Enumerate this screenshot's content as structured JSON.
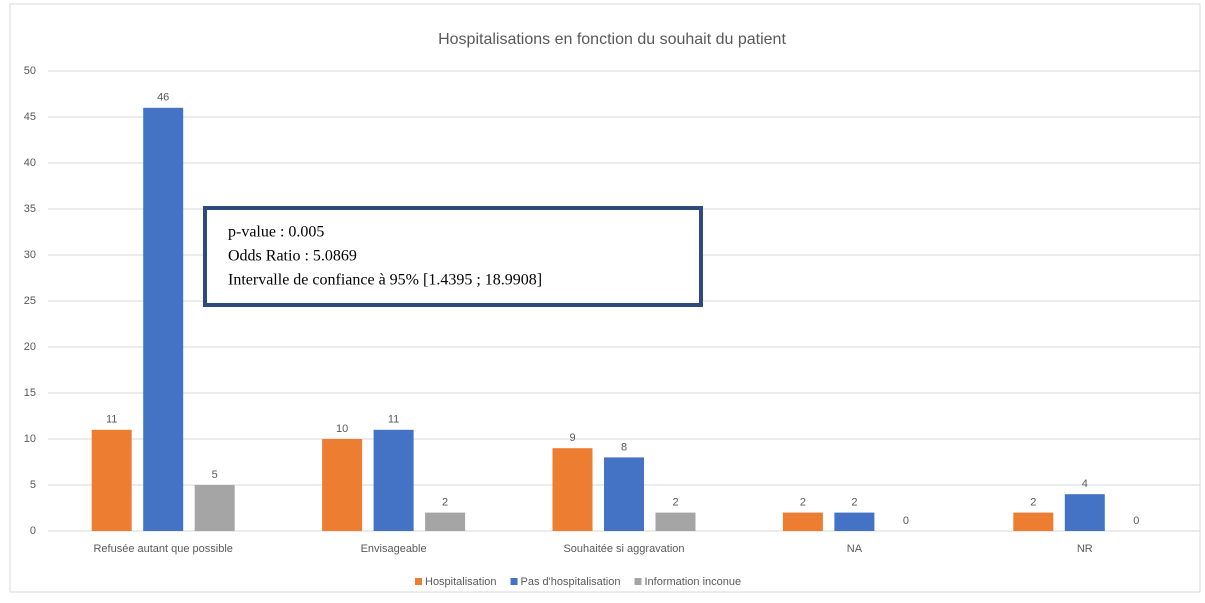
{
  "chart_data": {
    "type": "bar",
    "title": "Hospitalisations en fonction du souhait du patient",
    "categories": [
      "Refusée autant que possible",
      "Envisageable",
      "Souhaitée si aggravation",
      "NA",
      "NR"
    ],
    "series": [
      {
        "name": "Hospitalisation",
        "color": "#ed7d31",
        "values": [
          11,
          10,
          9,
          2,
          2
        ]
      },
      {
        "name": "Pas d'hospitalisation",
        "color": "#4472c4",
        "values": [
          46,
          11,
          8,
          2,
          4
        ]
      },
      {
        "name": "Information inconue",
        "color": "#a5a5a5",
        "values": [
          5,
          2,
          2,
          0,
          0
        ]
      }
    ],
    "ylim": [
      0,
      50
    ],
    "yticks": [
      0,
      5,
      10,
      15,
      20,
      25,
      30,
      35,
      40,
      45,
      50
    ],
    "grid": true,
    "legend": "bottom",
    "annotations": [
      "p-value : 0.005",
      "Odds Ratio : 5.0869",
      "Intervalle de confiance à 95% [1.4395 ; 18.9908]"
    ]
  }
}
